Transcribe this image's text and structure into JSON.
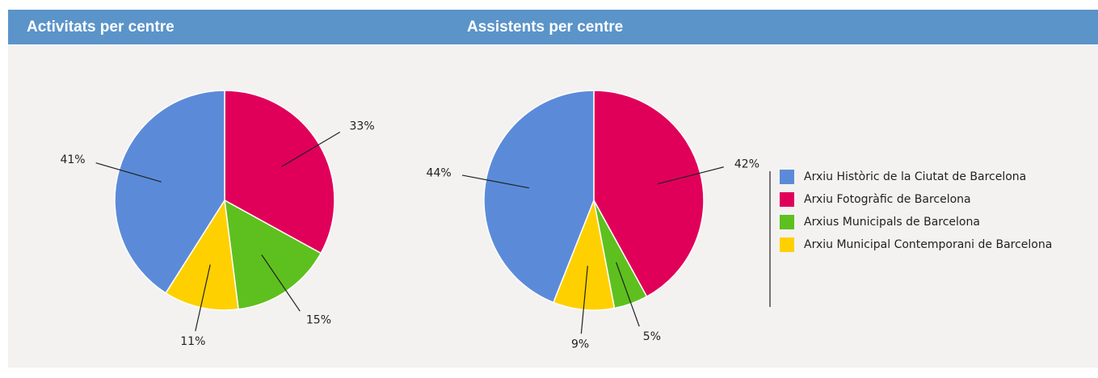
{
  "chart_data": [
    {
      "type": "pie",
      "title": "Activitats per centre",
      "categories": [
        "Arxiu Històric de la Ciutat de Barcelona",
        "Arxiu Fotogràfic de Barcelona",
        "Arxius Municipals de Barcelona",
        "Arxiu Municipal Contemporani de Barcelona"
      ],
      "values": [
        41,
        33,
        15,
        11
      ],
      "value_labels": [
        "41%",
        "33%",
        "15%",
        "11%"
      ],
      "colors": [
        "#5b8bd8",
        "#e0005a",
        "#5ec01e",
        "#ffd000"
      ]
    },
    {
      "type": "pie",
      "title": "Assistents per centre",
      "categories": [
        "Arxiu Històric de la Ciutat de Barcelona",
        "Arxiu Fotogràfic de Barcelona",
        "Arxius Municipals de Barcelona",
        "Arxiu Municipal Contemporani de Barcelona"
      ],
      "values": [
        44,
        42,
        5,
        9
      ],
      "value_labels": [
        "44%",
        "42%",
        "5%",
        "9%"
      ],
      "colors": [
        "#5b8bd8",
        "#e0005a",
        "#5ec01e",
        "#ffd000"
      ]
    }
  ]
}
